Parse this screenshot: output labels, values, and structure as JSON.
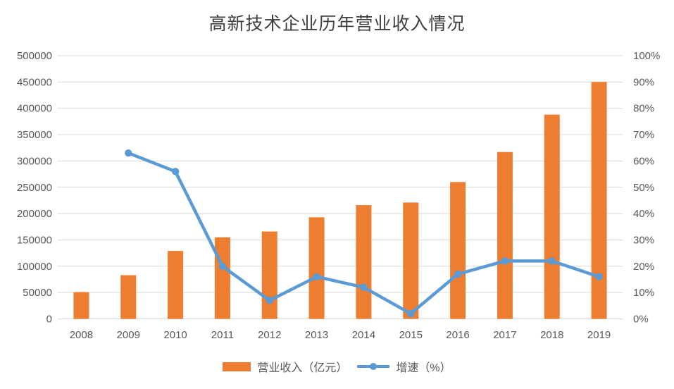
{
  "title": "高新技术企业历年营业收入情况",
  "legend": {
    "revenue_label": "营业收入（亿元）",
    "growth_label": "增速（%）"
  },
  "colors": {
    "bar": "#ed7d31",
    "line": "#5b9bd5",
    "gridline": "#d9d9d9",
    "axis_text": "#595959",
    "title_text": "#3f3f3f",
    "background": "#ffffff"
  },
  "chart_data": {
    "type": "combo-bar-line",
    "title": "高新技术企业历年营业收入情况",
    "categories": [
      "2008",
      "2009",
      "2010",
      "2011",
      "2012",
      "2013",
      "2014",
      "2015",
      "2016",
      "2017",
      "2018",
      "2019"
    ],
    "series": [
      {
        "name": "营业收入（亿元）",
        "type": "bar",
        "axis": "left",
        "color": "#ed7d31",
        "values": [
          51000,
          83000,
          129000,
          155000,
          166000,
          193000,
          216000,
          221000,
          260000,
          317000,
          388000,
          450000
        ]
      },
      {
        "name": "增速（%）",
        "type": "line",
        "axis": "right",
        "color": "#5b9bd5",
        "values": [
          null,
          63,
          56,
          20,
          7,
          16,
          12,
          2,
          17,
          22,
          22,
          16
        ]
      }
    ],
    "left_axis": {
      "min": 0,
      "max": 500000,
      "step": 50000,
      "tick_labels": [
        "0",
        "50000",
        "100000",
        "150000",
        "200000",
        "250000",
        "300000",
        "350000",
        "400000",
        "450000",
        "500000"
      ]
    },
    "right_axis": {
      "min": 0,
      "max": 100,
      "step": 10,
      "tick_labels": [
        "0%",
        "10%",
        "20%",
        "30%",
        "40%",
        "50%",
        "60%",
        "70%",
        "80%",
        "90%",
        "100%"
      ]
    },
    "grid": true,
    "legend_position": "bottom"
  }
}
